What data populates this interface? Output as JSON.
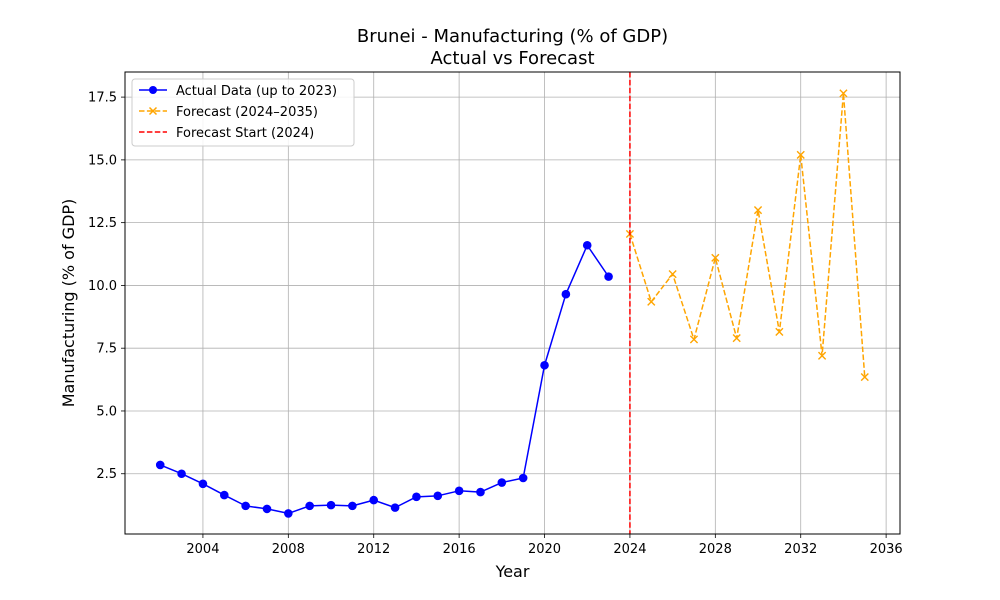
{
  "chart_data": {
    "type": "line",
    "title": "Brunei - Manufacturing (% of GDP)",
    "subtitle": "Actual vs Forecast",
    "xlabel": "Year",
    "ylabel": "Manufacturing (% of GDP)",
    "xlim": [
      2000.35,
      2036.65
    ],
    "ylim": [
      0.1,
      18.5
    ],
    "x_ticks": [
      2004,
      2008,
      2012,
      2016,
      2020,
      2024,
      2028,
      2032,
      2036
    ],
    "y_ticks": [
      2.5,
      5.0,
      7.5,
      10.0,
      12.5,
      15.0,
      17.5
    ],
    "grid": true,
    "legend_position": "top-left",
    "series": [
      {
        "name": "Actual Data (up to 2023)",
        "color": "#0000ff",
        "style": "solid",
        "marker": "circle",
        "x": [
          2002,
          2003,
          2004,
          2005,
          2006,
          2007,
          2008,
          2009,
          2010,
          2011,
          2012,
          2013,
          2014,
          2015,
          2016,
          2017,
          2018,
          2019,
          2020,
          2021,
          2022,
          2023
        ],
        "values": [
          2.85,
          2.5,
          2.1,
          1.65,
          1.22,
          1.1,
          0.92,
          1.22,
          1.25,
          1.22,
          1.45,
          1.15,
          1.58,
          1.62,
          1.82,
          1.77,
          2.15,
          2.33,
          6.82,
          9.65,
          11.6,
          10.35
        ]
      },
      {
        "name": "Forecast (2024–2035)",
        "color": "#ffa500",
        "style": "dashed",
        "marker": "x",
        "x": [
          2024,
          2025,
          2026,
          2027,
          2028,
          2029,
          2030,
          2031,
          2032,
          2033,
          2034,
          2035
        ],
        "values": [
          12.05,
          9.35,
          10.45,
          7.85,
          11.1,
          7.9,
          13.0,
          8.15,
          15.2,
          7.2,
          17.65,
          6.35
        ]
      }
    ],
    "vlines": [
      {
        "name": "Forecast Start (2024)",
        "x": 2024,
        "color": "#ff0000",
        "style": "dashed"
      }
    ]
  }
}
